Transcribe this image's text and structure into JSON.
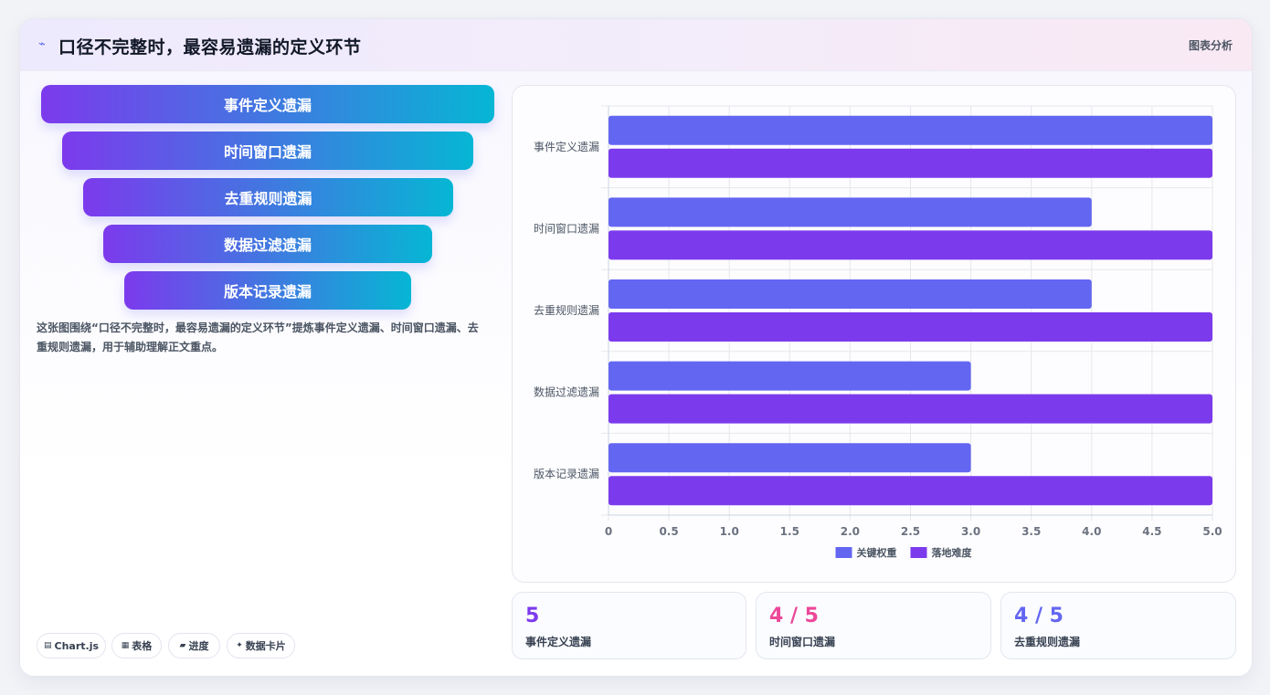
{
  "header": {
    "icon": "trend-line-icon",
    "icon_glyph": "⌁",
    "title": "口径不完整时，最容易遗漏的定义环节",
    "tag": "图表分析"
  },
  "funnel": {
    "steps": [
      "事件定义遗漏",
      "时间窗口遗漏",
      "去重规则遗漏",
      "数据过滤遗漏",
      "版本记录遗漏"
    ]
  },
  "description": "这张图围绕“口径不完整时，最容易遗漏的定义环节”提炼事件定义遗漏、时间窗口遗漏、去重规则遗漏，用于辅助理解正文重点。",
  "chips": [
    {
      "icon": "chart-icon",
      "glyph": "▤",
      "label": "Chart.js"
    },
    {
      "icon": "table-icon",
      "glyph": "▦",
      "label": "表格"
    },
    {
      "icon": "progress-icon",
      "glyph": "▰",
      "label": "进度"
    },
    {
      "icon": "sparkle-icon",
      "glyph": "✦",
      "label": "数据卡片"
    }
  ],
  "chart_data": {
    "type": "bar",
    "orientation": "horizontal",
    "categories": [
      "事件定义遗漏",
      "时间窗口遗漏",
      "去重规则遗漏",
      "数据过滤遗漏",
      "版本记录遗漏"
    ],
    "series": [
      {
        "name": "关键权重",
        "color": "#6366f1",
        "values": [
          5,
          4,
          4,
          3,
          3
        ]
      },
      {
        "name": "落地难度",
        "color": "#7c3aed",
        "values": [
          5,
          5,
          5,
          5,
          5
        ]
      }
    ],
    "xlim": [
      0,
      5
    ],
    "xticks": [
      "0",
      "0.5",
      "1.0",
      "1.5",
      "2.0",
      "2.5",
      "3.0",
      "3.5",
      "4.0",
      "4.5",
      "5.0"
    ],
    "grid": true,
    "legend": "bottom"
  },
  "stats": [
    {
      "value": "5",
      "label": "事件定义遗漏",
      "color": "#7c3aed"
    },
    {
      "value": "4 / 5",
      "label": "时间窗口遗漏",
      "color": "#ec4899"
    },
    {
      "value": "4 / 5",
      "label": "去重规则遗漏",
      "color": "#6366f1"
    }
  ]
}
